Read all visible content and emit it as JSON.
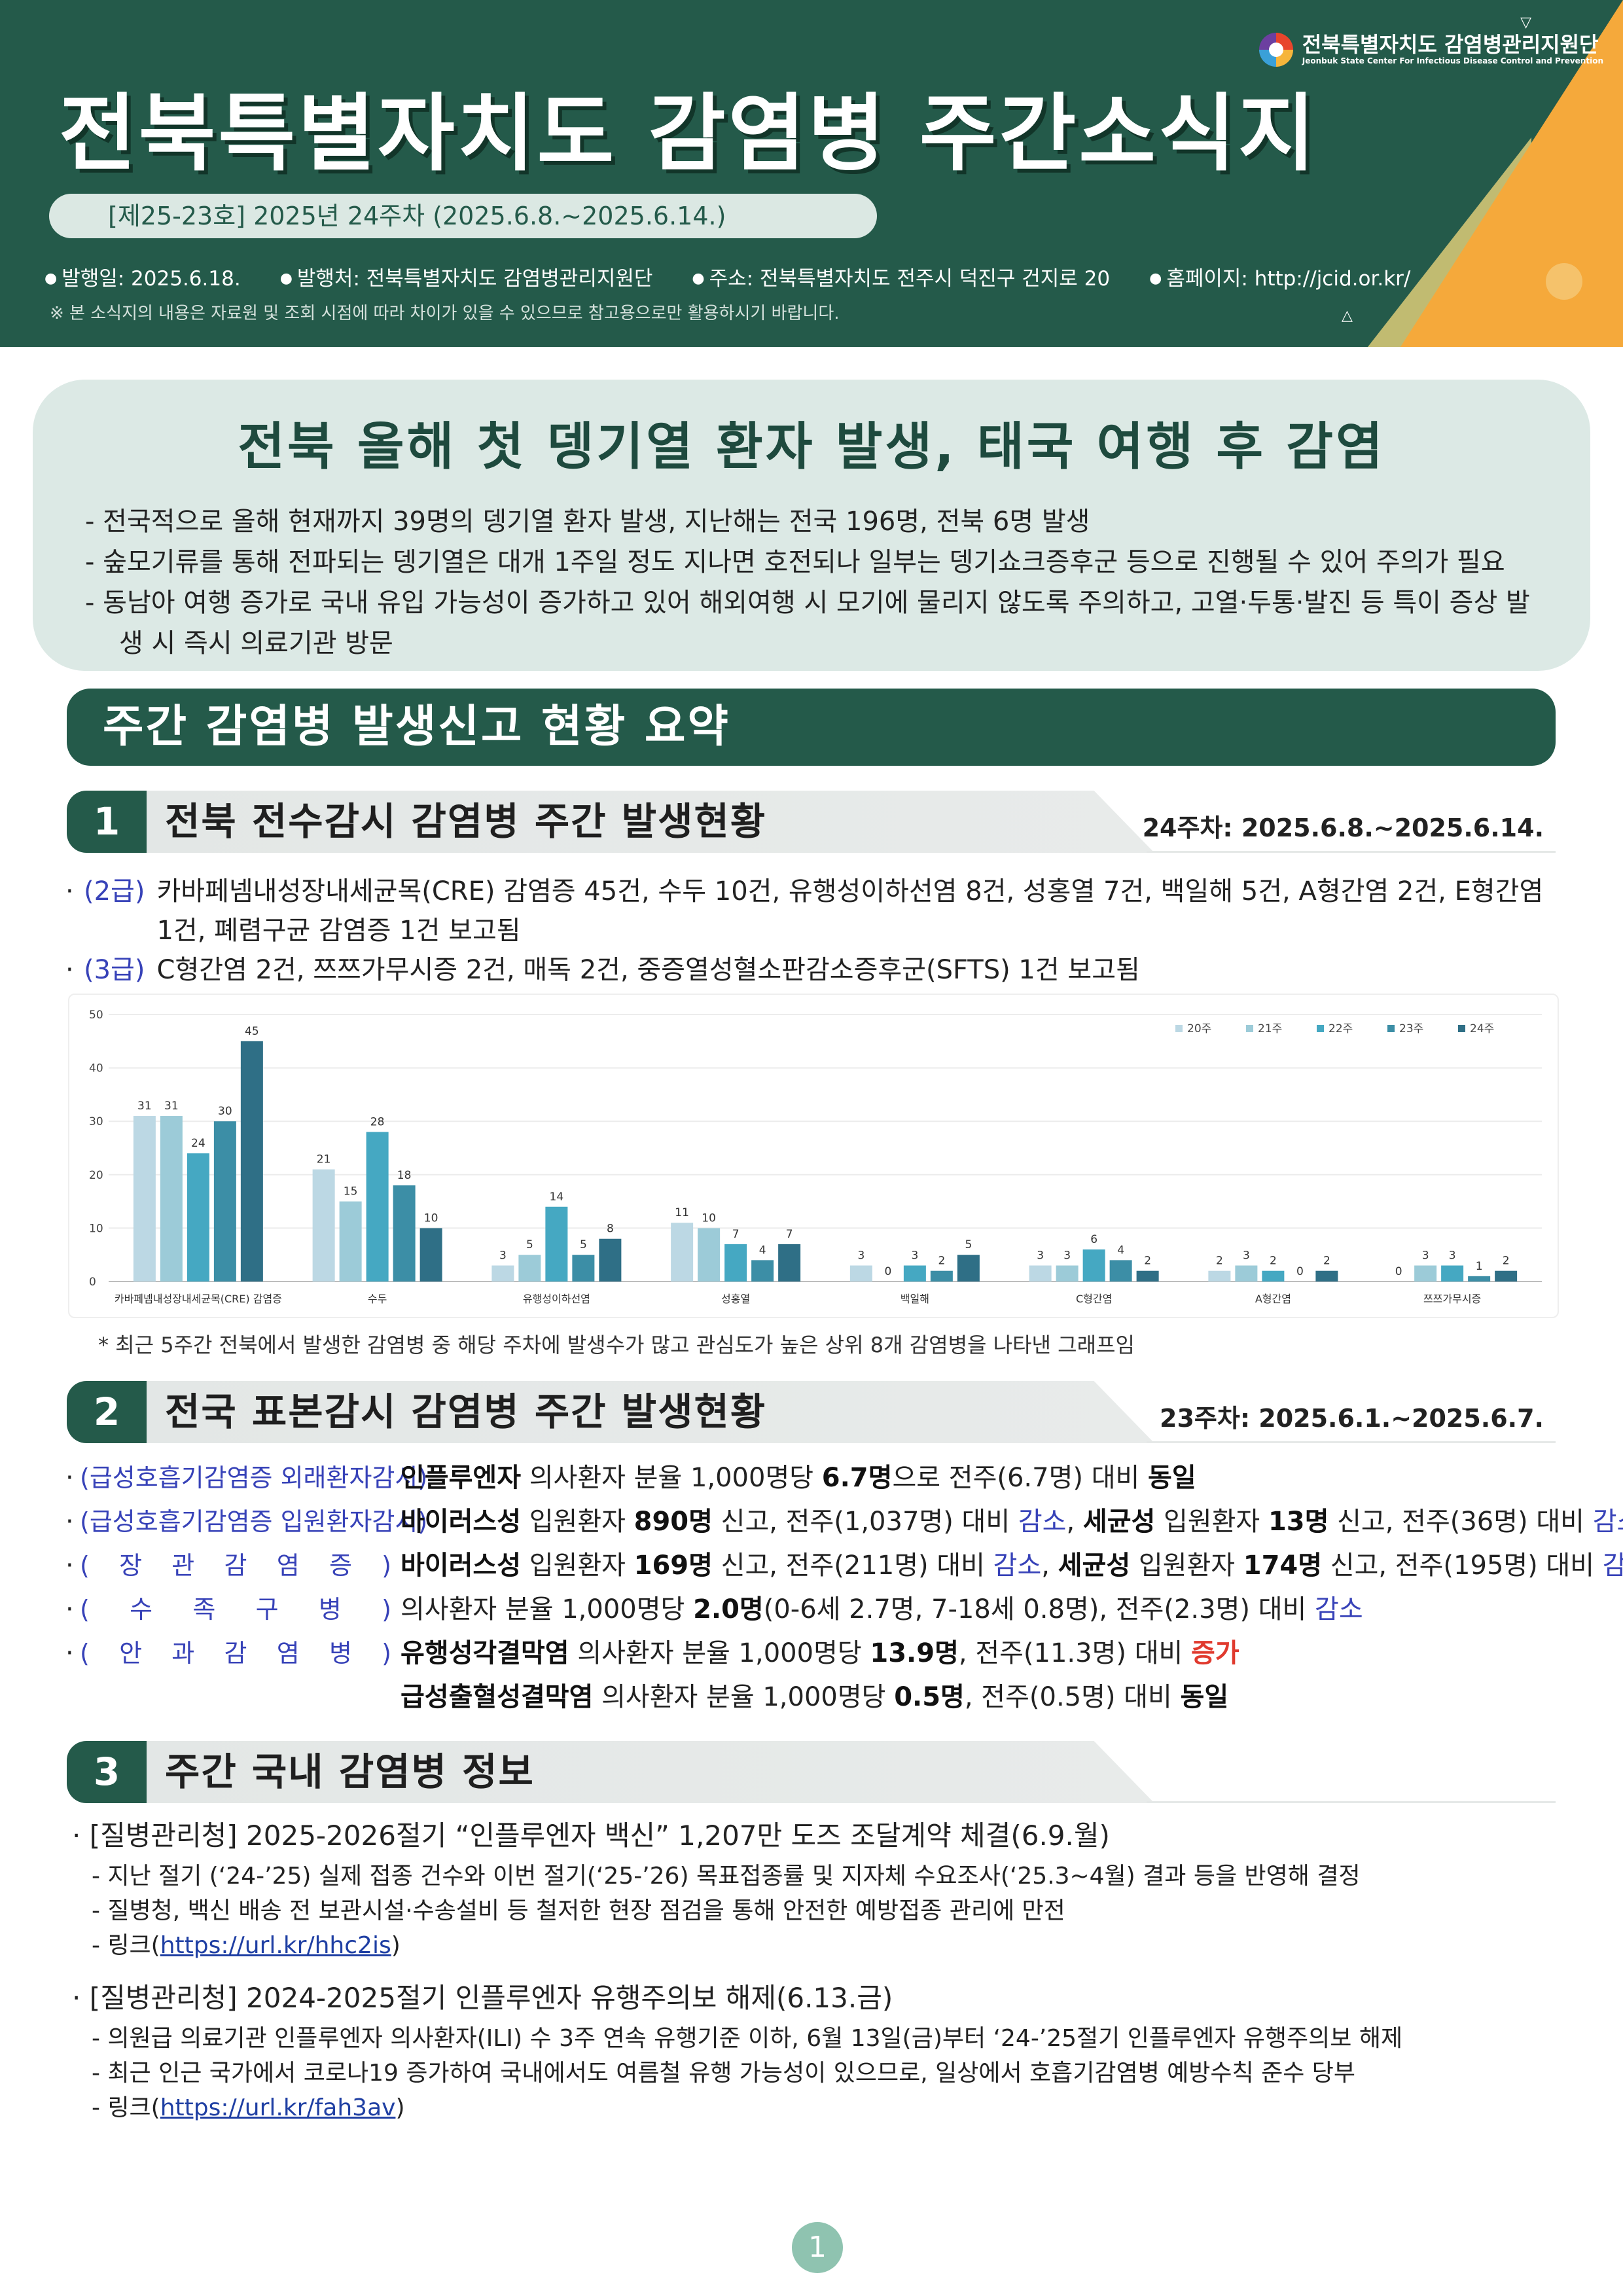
{
  "header": {
    "title": "전북특별자치도  감염병  주간소식지",
    "issue": "[제25-23호] 2025년 24주차 (2025.6.8.~2025.6.14.)",
    "logo_name": "전북특별자치도 감염병관리지원단",
    "logo_sub": "Jeonbuk State Center For Infectious Disease Control and Prevention",
    "meta": [
      "발행일: 2025.6.18.",
      "발행처: 전북특별자치도 감염병관리지원단",
      "주소: 전북특별자치도 전주시 덕진구 건지로 20",
      "홈페이지: http://jcid.or.kr/"
    ],
    "note": "※ 본 소식지의 내용은 자료원 및 조회 시점에 따라 차이가 있을 수 있으므로 참고용으로만 활용하시기 바랍니다."
  },
  "headline": {
    "title": "전북 올해 첫 뎅기열 환자 발생, 태국 여행 후 감염",
    "items": [
      "전국적으로 올해 현재까지 39명의 뎅기열 환자 발생, 지난해는 전국 196명, 전북 6명 발생",
      "숲모기류를 통해 전파되는 뎅기열은 대개 1주일 정도 지나면 호전되나 일부는 뎅기쇼크증후군 등으로 진행될 수 있어 주의가 필요",
      "동남아 여행 증가로 국내 유입 가능성이 증가하고 있어 해외여행 시 모기에 물리지 않도록 주의하고, 고열·두통·발진 등 특이 증상 발생 시 즉시 의료기관 방문"
    ]
  },
  "summary_banner": "주간 감염병 발생신고 현황 요약",
  "section1": {
    "num": "1",
    "title": "전북 전수감시 감염병 주간 발생현황",
    "period": "24주차: 2025.6.8.~2025.6.14.",
    "bullets": [
      {
        "tag": "(2급)",
        "text": "카바페넴내성장내세균목(CRE) 감염증 45건, 수두 10건, 유행성이하선염 8건, 성홍열 7건, 백일해 5건, A형간염 2건, E형간염 1건, 폐렴구균 감염증 1건 보고됨"
      },
      {
        "tag": "(3급)",
        "text": "C형간염 2건, 쯔쯔가무시증 2건, 매독 2건, 중증열성혈소판감소증후군(SFTS) 1건 보고됨"
      }
    ],
    "chart_note": "* 최근 5주간 전북에서 발생한 감염병 중 해당 주차에 발생수가 많고 관심도가 높은 상위 8개 감염병을 나타낸 그래프임"
  },
  "chart_data": {
    "type": "bar",
    "categories": [
      "카바페넴내성장내세균목(CRE) 감염증",
      "수두",
      "유행성이하선염",
      "성홍열",
      "백일해",
      "C형간염",
      "A형간염",
      "쯔쯔가무시증"
    ],
    "series": [
      {
        "name": "20주",
        "color": "#bcd8e4",
        "values": [
          31,
          21,
          3,
          11,
          3,
          3,
          2,
          0
        ]
      },
      {
        "name": "21주",
        "color": "#9ccbd8",
        "values": [
          31,
          15,
          5,
          10,
          0,
          3,
          3,
          3
        ]
      },
      {
        "name": "22주",
        "color": "#45a8c2",
        "values": [
          24,
          28,
          14,
          7,
          3,
          6,
          2,
          3
        ]
      },
      {
        "name": "23주",
        "color": "#3c8ea6",
        "values": [
          30,
          18,
          5,
          4,
          2,
          4,
          0,
          1
        ]
      },
      {
        "name": "24주",
        "color": "#2f6f86",
        "values": [
          45,
          10,
          8,
          7,
          5,
          2,
          2,
          2
        ]
      }
    ],
    "yticks": [
      0,
      10,
      20,
      30,
      40,
      50
    ],
    "ylim": [
      0,
      50
    ],
    "legend_position": "top-right",
    "grid": true
  },
  "section2": {
    "num": "2",
    "title": "전국 표본감시 감염병 주간 발생현황",
    "period": "23주차: 2025.6.1.~2025.6.7.",
    "rows": {
      "flu_tag": "(급성호흡기감염증 외래환자감시)",
      "flu_pre": "인플루엔자",
      "flu_mid": " 의사환자 분율 1,000명당 ",
      "flu_val": "6.7명",
      "flu_post": "으로 전주(6.7명) 대비 ",
      "flu_trend": "동일",
      "inp_tag": "(급성호흡기감염증 입원환자감시)",
      "inp_v": "바이러스성",
      "inp_a": " 입원환자 ",
      "inp_v_val": "890명",
      "inp_b": " 신고, 전주(1,037명) 대비 ",
      "inp_v_trend": "감소",
      "inp_sep": ", ",
      "inp_b2": "세균성",
      "inp_c": " 입원환자 ",
      "inp_b_val": "13명",
      "inp_d": " 신고, 전주(36명) 대비 ",
      "inp_b_trend": "감소",
      "gi_tag": [
        "(",
        "장",
        "관",
        "감",
        "염",
        "증",
        ")"
      ],
      "gi_v": "바이러스성",
      "gi_a": " 입원환자 ",
      "gi_v_val": "169명",
      "gi_b": " 신고, 전주(211명) 대비 ",
      "gi_v_trend": "감소",
      "gi_sep": ", ",
      "gi_b2": "세균성",
      "gi_c": " 입원환자 ",
      "gi_b_val": "174명",
      "gi_d": " 신고, 전주(195명) 대비 ",
      "gi_b_trend": "감소",
      "hfmd_tag": [
        "(",
        "수",
        "족",
        "구",
        "병",
        ")"
      ],
      "hfmd_a": "의사환자 분율 1,000명당 ",
      "hfmd_val": "2.0명",
      "hfmd_b": "(0-6세 2.7명, 7-18세 0.8명), 전주(2.3명) 대비 ",
      "hfmd_trend": "감소",
      "eye_tag": [
        "(",
        "안",
        "과",
        "감",
        "염",
        "병",
        ")"
      ],
      "eye1_name": "유행성각결막염",
      "eye1_a": " 의사환자 분율 1,000명당 ",
      "eye1_val": "13.9명",
      "eye1_b": ", 전주(11.3명) 대비 ",
      "eye1_trend": "증가",
      "eye2_name": "급성출혈성결막염",
      "eye2_a": " 의사환자 분율 1,000명당 ",
      "eye2_val": "0.5명",
      "eye2_b": ", 전주(0.5명) 대비 ",
      "eye2_trend": "동일"
    }
  },
  "section3": {
    "num": "3",
    "title": "주간 국내 감염병 정보",
    "news": [
      {
        "head": "[질병관리청] 2025-2026절기 “인플루엔자 백신” 1,207만 도즈 조달계약 체결(6.9.월)",
        "lines": [
          "지난 절기 (‘24-’25) 실제 접종 건수와 이번 절기(‘25-’26) 목표접종률 및 지자체 수요조사(‘25.3~4월) 결과 등을 반영해 결정",
          "질병청, 백신 배송 전 보관시설·수송설비 등 철저한 현장 점검을 통해 안전한 예방접종 관리에 만전"
        ],
        "link_label": "링크(",
        "link": "https://url.kr/hhc2is",
        "link_end": ")"
      },
      {
        "head": "[질병관리청] 2024-2025절기 인플루엔자 유행주의보 해제(6.13.금)",
        "lines": [
          "의원급 의료기관 인플루엔자 의사환자(ILI) 수 3주 연속 유행기준 이하, 6월 13일(금)부터 ‘24-’25절기 인플루엔자 유행주의보 해제",
          "최근 인근 국가에서 코로나19 증가하여 국내에서도 여름철 유행 가능성이 있으므로, 일상에서 호흡기감염병 예방수칙 준수 당부"
        ],
        "link_label": "링크(",
        "link": "https://url.kr/fah3av",
        "link_end": ")"
      }
    ]
  },
  "page_number": "1"
}
